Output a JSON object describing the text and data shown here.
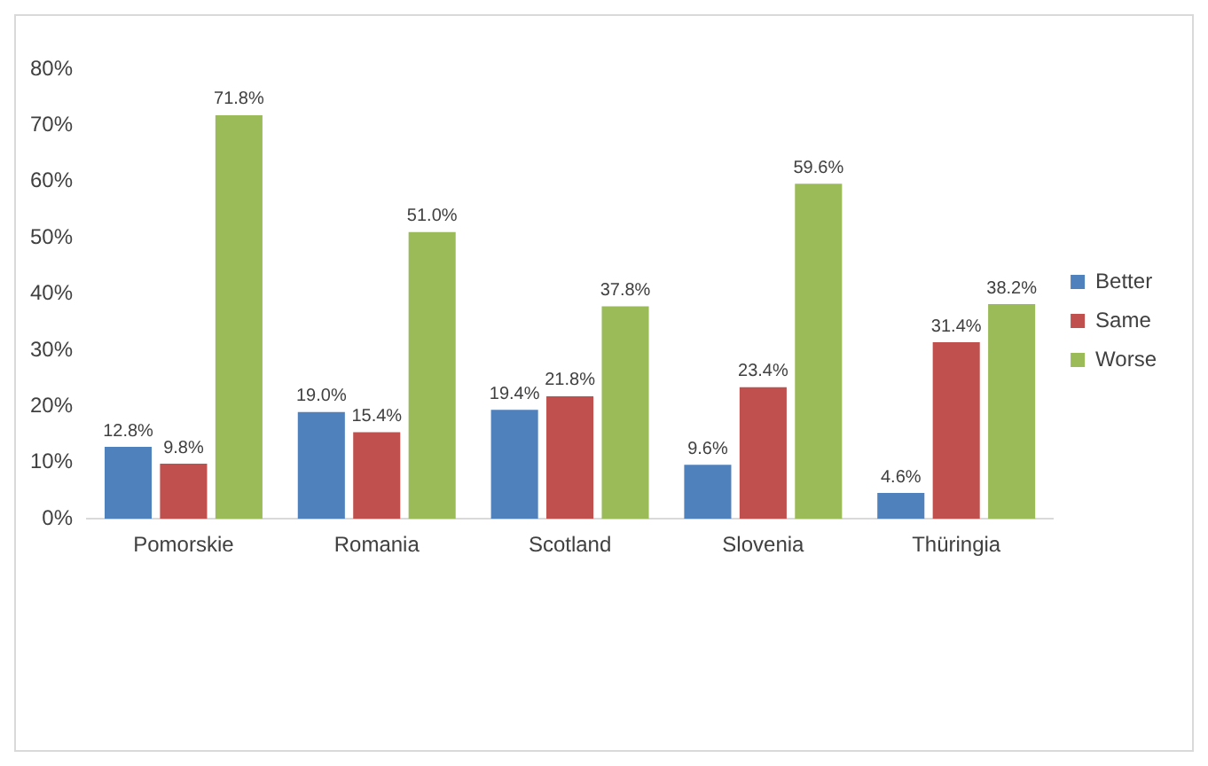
{
  "chart_data": {
    "type": "bar",
    "categories": [
      "Pomorskie",
      "Romania",
      "Scotland",
      "Slovenia",
      "Thüringia"
    ],
    "series": [
      {
        "name": "Better",
        "color": "#4f81bd",
        "values": [
          12.8,
          19.0,
          19.4,
          9.6,
          4.6
        ],
        "value_labels": [
          "12.8%",
          "19.0%",
          "19.4%",
          "9.6%",
          "4.6%"
        ]
      },
      {
        "name": "Same",
        "color": "#c0504d",
        "values": [
          9.8,
          15.4,
          21.8,
          23.4,
          31.4
        ],
        "value_labels": [
          "9.8%",
          "15.4%",
          "21.8%",
          "23.4%",
          "31.4%"
        ]
      },
      {
        "name": "Worse",
        "color": "#9bbb59",
        "values": [
          71.8,
          51.0,
          37.8,
          59.6,
          38.2
        ],
        "value_labels": [
          "71.8%",
          "51.0%",
          "37.8%",
          "59.6%",
          "38.2%"
        ]
      }
    ],
    "ylim": [
      0,
      80
    ],
    "yticks": [
      {
        "value": 0,
        "label": "0%"
      },
      {
        "value": 10,
        "label": "10%"
      },
      {
        "value": 20,
        "label": "20%"
      },
      {
        "value": 30,
        "label": "30%"
      },
      {
        "value": 40,
        "label": "40%"
      },
      {
        "value": 50,
        "label": "50%"
      },
      {
        "value": 60,
        "label": "60%"
      },
      {
        "value": 70,
        "label": "70%"
      },
      {
        "value": 80,
        "label": "80%"
      }
    ],
    "grid": false,
    "legend": "right"
  }
}
